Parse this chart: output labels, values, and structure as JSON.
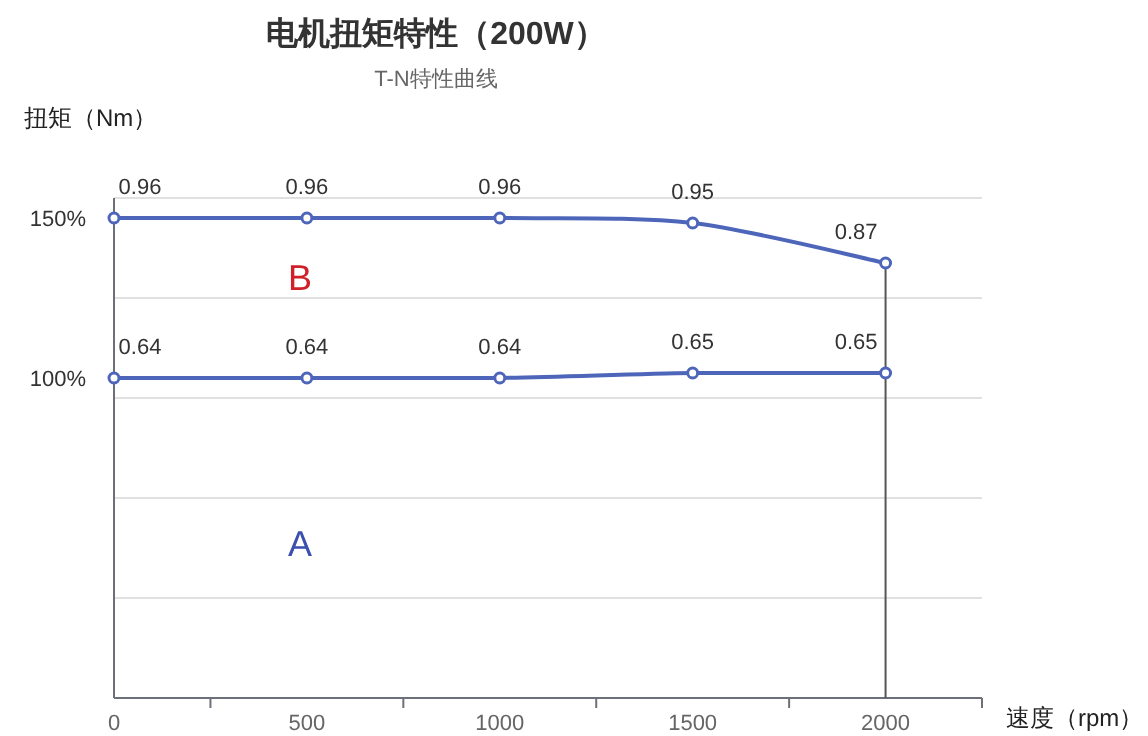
{
  "chart_data": {
    "type": "line",
    "title": "电机扭矩特性（200W）",
    "subtitle": "T-N特性曲线",
    "xlabel": "速度（rpm）",
    "ylabel": "扭矩（Nm）",
    "x": [
      0,
      500,
      1000,
      1500,
      2000
    ],
    "series": [
      {
        "color": "#4e66b9",
        "values": [
          0.96,
          0.96,
          0.96,
          0.95,
          0.87
        ]
      },
      {
        "color": "#4e66b9",
        "values": [
          0.64,
          0.64,
          0.64,
          0.65,
          0.65
        ]
      }
    ],
    "xlim": [
      0,
      2250
    ],
    "xticks": [
      0,
      {
        "value": 250,
        "label": null
      },
      500,
      {
        "value": 750,
        "label": null
      },
      1000,
      {
        "value": 1250,
        "label": null
      },
      1500,
      {
        "value": 1750,
        "label": null
      },
      2000,
      {
        "value": 2250,
        "label": null
      }
    ],
    "ylim": [
      0,
      1
    ],
    "yticks": [
      {
        "value": 0.2,
        "label": null
      },
      {
        "value": 0.4,
        "label": null
      },
      {
        "value": 0.6,
        "label": null
      },
      {
        "value": 0.8,
        "label": null
      },
      {
        "value": 1,
        "label": null
      }
    ],
    "tick_labels": "x",
    "grid": "y",
    "marker": "circle",
    "data_labels": true,
    "ref_lines": [
      {
        "axis": "x",
        "value": 2000
      }
    ],
    "annotations": [
      "B",
      "A",
      "100%",
      "150%"
    ]
  }
}
